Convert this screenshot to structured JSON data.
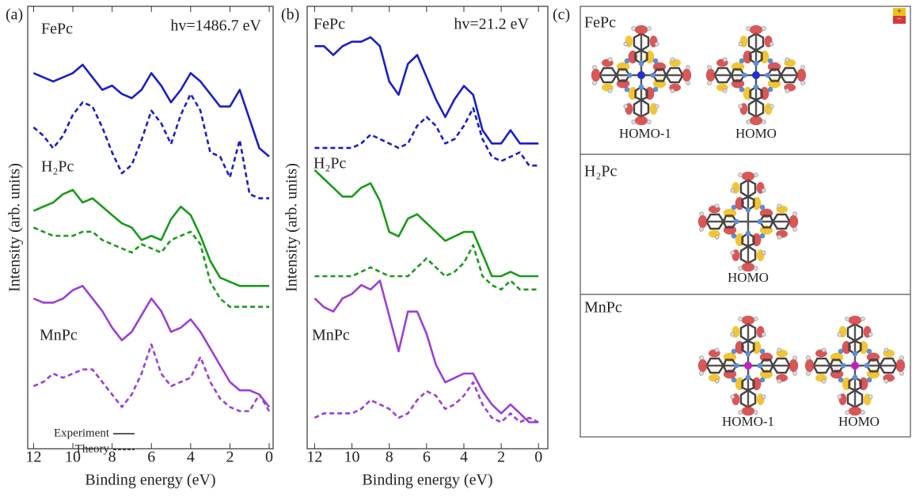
{
  "chart_data": [
    {
      "type": "line",
      "panel": "(a)",
      "energy": "hv=1486.7 eV",
      "xlabel": "Binding energy (eV)",
      "ylabel": "Intensity (arb. units)",
      "labels": [
        "FePc",
        "H₂Pc",
        "MnPc"
      ],
      "x": [
        12,
        11.5,
        11,
        10.5,
        10,
        9.5,
        9,
        8.5,
        8,
        7.5,
        7,
        6.5,
        6,
        5.5,
        5,
        4.5,
        4,
        3.5,
        3,
        2.5,
        2,
        1.5,
        1,
        0.5,
        0
      ],
      "xlim": [
        12.3,
        -0.2
      ],
      "ylim": [
        -6,
        100
      ],
      "xticks": [
        12,
        10,
        8,
        6,
        4,
        2,
        0
      ],
      "legend": [
        {
          "label": "Experiment",
          "dash": false
        },
        {
          "label": "Theory",
          "dash": true
        }
      ],
      "series": [
        {
          "color": "#1a1fc8",
          "dash": false,
          "values": [
            84,
            83,
            82,
            83,
            84,
            86,
            83,
            80,
            81,
            79,
            78,
            80,
            84,
            81,
            77,
            80,
            84,
            82,
            79,
            76,
            76,
            80,
            73,
            66,
            64
          ]
        },
        {
          "color": "#1a1fc8",
          "dash": true,
          "values": [
            71,
            69,
            66,
            69,
            74,
            77,
            76,
            71,
            65,
            60,
            62,
            68,
            75,
            72,
            67,
            74,
            79,
            75,
            65,
            64,
            59,
            68,
            55,
            54,
            54
          ]
        },
        {
          "color": "#1a9a1a",
          "dash": false,
          "values": [
            51,
            52,
            53,
            55,
            56,
            53,
            54,
            52,
            50,
            48,
            47,
            44,
            45,
            44,
            49,
            52,
            50,
            45,
            39,
            35,
            34,
            33,
            33,
            33,
            33
          ]
        },
        {
          "color": "#1a9a1a",
          "dash": true,
          "values": [
            47,
            46,
            45,
            45,
            45,
            46,
            46,
            44,
            43,
            42,
            41,
            43,
            42,
            41,
            44,
            45,
            46,
            43,
            34,
            30,
            28,
            28,
            28,
            28,
            28
          ]
        },
        {
          "color": "#9b3fd6",
          "dash": false,
          "values": [
            30,
            29,
            29,
            30,
            32,
            33,
            30,
            27,
            23,
            20,
            22,
            26,
            30,
            27,
            22,
            23,
            25,
            22,
            18,
            14,
            10,
            8,
            8,
            7,
            4
          ]
        },
        {
          "color": "#9b3fd6",
          "dash": true,
          "values": [
            9,
            10,
            12,
            11,
            12,
            13,
            13,
            10,
            7,
            4,
            7,
            12,
            19,
            12,
            9,
            10,
            11,
            16,
            10,
            6,
            4,
            3,
            3,
            7,
            3
          ]
        }
      ]
    },
    {
      "type": "line",
      "panel": "(b)",
      "energy": "hv=21.2 eV",
      "xlabel": "Binding energy (eV)",
      "ylabel": "Intensity (arb. units)",
      "labels": [
        "FePc",
        "H₂Pc",
        "MnPc"
      ],
      "x": [
        12,
        11.5,
        11,
        10.5,
        10,
        9.5,
        9,
        8.5,
        8,
        7.5,
        7,
        6.5,
        6,
        5.5,
        5,
        4.5,
        4,
        3.5,
        3,
        2.5,
        2,
        1.5,
        1,
        0.5,
        0
      ],
      "xlim": [
        12.4,
        -0.5
      ],
      "ylim": [
        0,
        100
      ],
      "xticks": [
        12,
        10,
        8,
        6,
        4,
        2,
        0
      ],
      "series": [
        {
          "color": "#1a1fc8",
          "dash": false,
          "values": [
            91,
            91,
            89,
            91,
            92,
            92,
            93,
            91,
            83,
            80,
            87,
            89,
            84,
            79,
            75,
            79,
            82,
            80,
            72,
            69,
            69,
            72,
            69,
            69,
            69
          ]
        },
        {
          "color": "#1a1fc8",
          "dash": true,
          "values": [
            68,
            68,
            68,
            68,
            68,
            69,
            71,
            70,
            69,
            68,
            69,
            73,
            75,
            73,
            69,
            70,
            73,
            77,
            70,
            66,
            65,
            66,
            67,
            64,
            64
          ]
        },
        {
          "color": "#1a9a1a",
          "dash": false,
          "values": [
            63,
            61,
            59,
            57,
            57,
            59,
            60,
            56,
            49,
            48,
            52,
            53,
            51,
            49,
            47,
            48,
            49,
            49,
            44,
            39,
            39,
            40,
            39,
            39,
            39
          ]
        },
        {
          "color": "#1a9a1a",
          "dash": true,
          "values": [
            39,
            39,
            39,
            39,
            39,
            40,
            41,
            40,
            39,
            39,
            39,
            41,
            43,
            41,
            39,
            40,
            42,
            46,
            39,
            37,
            36,
            38,
            36,
            36,
            36
          ]
        },
        {
          "color": "#9b3fd6",
          "dash": false,
          "values": [
            34,
            32,
            31,
            34,
            35,
            37,
            36,
            38,
            30,
            22,
            31,
            31,
            26,
            19,
            15,
            16,
            17,
            17,
            13,
            10,
            8,
            10,
            8,
            6,
            6
          ]
        },
        {
          "color": "#9b3fd6",
          "dash": true,
          "values": [
            7,
            8,
            8,
            8,
            8,
            9,
            11,
            10,
            9,
            7,
            8,
            11,
            13,
            12,
            9,
            10,
            12,
            15,
            10,
            7,
            6,
            8,
            6,
            7,
            6
          ]
        }
      ]
    }
  ],
  "diagram": {
    "panel": "(c)",
    "signs": [
      "+",
      "−"
    ],
    "rows": [
      {
        "title": "FePc",
        "orbitals": [
          "HOMO-1",
          "HOMO"
        ]
      },
      {
        "title": "H₂Pc",
        "orbitals": [
          "HOMO"
        ]
      },
      {
        "title": "MnPc",
        "orbitals": [
          "HOMO-1",
          "HOMO"
        ]
      }
    ]
  }
}
